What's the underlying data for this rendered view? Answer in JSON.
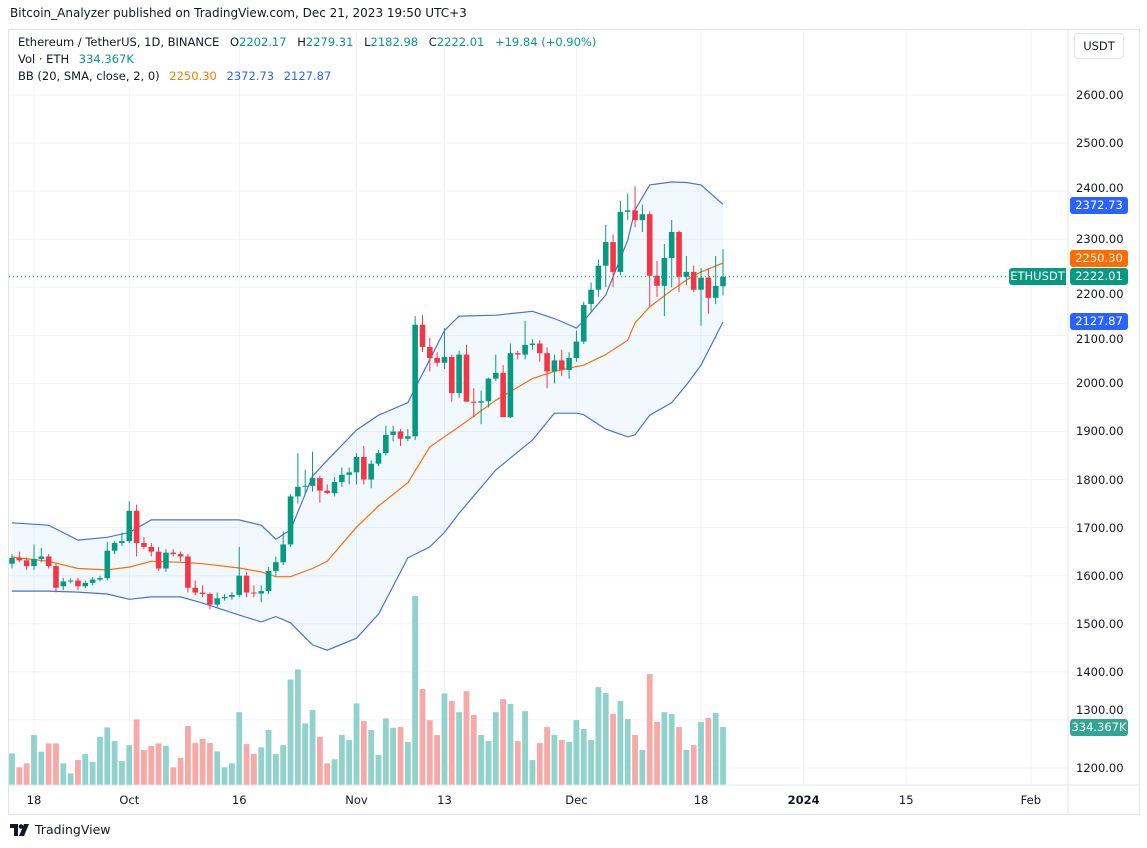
{
  "header": {
    "publisher_line": "Bitcoin_Analyzer published on TradingView.com, Dec 21, 2023 19:50 UTC+3"
  },
  "legend": {
    "symbol": "Ethereum / TetherUS, 1D, BINANCE",
    "open_label": "O",
    "open": "2202.17",
    "high_label": "H",
    "high": "2279.31",
    "low_label": "L",
    "low": "2182.98",
    "close_label": "C",
    "close": "2222.01",
    "change": "+19.84 (+0.90%)",
    "vol_label": "Vol · ETH",
    "vol_value": "334.367K",
    "bb_label": "BB (20, SMA, close, 2, 0)",
    "bb_basis": "2250.30",
    "bb_upper": "2372.73",
    "bb_lower": "2127.87"
  },
  "price_axis": {
    "currency_button": "USDT"
  },
  "tags": {
    "upper": "2372.73",
    "basis": "2250.30",
    "last": "2222.01",
    "lower": "2127.87",
    "symbol": "ETHUSDT",
    "volume": "334.367K"
  },
  "colors": {
    "up": "#089981",
    "down": "#f23645",
    "vol_up": "#92d2cc",
    "vol_down": "#f7a9a7",
    "bb_band": "#4a6fe0",
    "bb_basis": "#ff6d00",
    "bb_fill": "#2196f3",
    "tag_blue": "#2962ff",
    "tag_orange": "#ff6d00",
    "tag_green": "#089981",
    "tag_volume": "#33a594"
  },
  "footer": {
    "brand": "TradingView"
  },
  "chart_data": {
    "type": "candlestick",
    "interval": "1D",
    "grid": true,
    "y_ticks": [
      "2600.00",
      "2500.00",
      "2400.00",
      "2300.00",
      "2200.00",
      "2100.00",
      "2000.00",
      "1900.00",
      "1800.00",
      "1700.00",
      "1600.00",
      "1500.00",
      "1400.00",
      "1300.00",
      "1200.00"
    ],
    "ylim": [
      1150,
      2700
    ],
    "x_ticks": [
      {
        "label": "18",
        "date": "2023-09-18"
      },
      {
        "label": "Oct",
        "date": "2023-10-01"
      },
      {
        "label": "16",
        "date": "2023-10-16"
      },
      {
        "label": "Nov",
        "date": "2023-11-01"
      },
      {
        "label": "13",
        "date": "2023-11-13"
      },
      {
        "label": "Dec",
        "date": "2023-12-01"
      },
      {
        "label": "18",
        "date": "2023-12-18"
      },
      {
        "label": "2024",
        "date": "2024-01-01",
        "bold": true
      },
      {
        "label": "15",
        "date": "2024-01-15"
      },
      {
        "label": "Feb",
        "date": "2024-02-01"
      }
    ],
    "candle_fields": [
      "date",
      "open",
      "high",
      "low",
      "close",
      "volume_k"
    ],
    "candles": [
      [
        "2023-09-15",
        1625,
        1645,
        1615,
        1637,
        182
      ],
      [
        "2023-09-16",
        1637,
        1650,
        1628,
        1632,
        102
      ],
      [
        "2023-09-17",
        1632,
        1638,
        1612,
        1620,
        125
      ],
      [
        "2023-09-18",
        1620,
        1665,
        1612,
        1635,
        288
      ],
      [
        "2023-09-19",
        1635,
        1658,
        1628,
        1640,
        192
      ],
      [
        "2023-09-20",
        1640,
        1645,
        1615,
        1620,
        240
      ],
      [
        "2023-09-21",
        1620,
        1625,
        1565,
        1575,
        240
      ],
      [
        "2023-09-22",
        1578,
        1595,
        1570,
        1588,
        125
      ],
      [
        "2023-09-23",
        1588,
        1594,
        1584,
        1590,
        67
      ],
      [
        "2023-09-24",
        1590,
        1596,
        1570,
        1578,
        144
      ],
      [
        "2023-09-25",
        1578,
        1590,
        1574,
        1585,
        178
      ],
      [
        "2023-09-26",
        1585,
        1597,
        1580,
        1592,
        132
      ],
      [
        "2023-09-27",
        1592,
        1600,
        1588,
        1595,
        278
      ],
      [
        "2023-09-28",
        1595,
        1670,
        1590,
        1652,
        332
      ],
      [
        "2023-09-29",
        1652,
        1672,
        1645,
        1668,
        253
      ],
      [
        "2023-09-30",
        1668,
        1690,
        1662,
        1672,
        138
      ],
      [
        "2023-10-01",
        1672,
        1755,
        1668,
        1735,
        230
      ],
      [
        "2023-10-02",
        1735,
        1748,
        1640,
        1668,
        378
      ],
      [
        "2023-10-03",
        1668,
        1680,
        1655,
        1660,
        202
      ],
      [
        "2023-10-04",
        1660,
        1668,
        1640,
        1650,
        225
      ],
      [
        "2023-10-05",
        1650,
        1660,
        1610,
        1615,
        240
      ],
      [
        "2023-10-06",
        1615,
        1655,
        1608,
        1648,
        225
      ],
      [
        "2023-10-07",
        1648,
        1655,
        1640,
        1645,
        102
      ],
      [
        "2023-10-08",
        1645,
        1650,
        1630,
        1640,
        156
      ],
      [
        "2023-10-09",
        1640,
        1645,
        1565,
        1575,
        340
      ],
      [
        "2023-10-10",
        1575,
        1590,
        1560,
        1565,
        242
      ],
      [
        "2023-10-11",
        1565,
        1580,
        1555,
        1562,
        265
      ],
      [
        "2023-10-12",
        1562,
        1565,
        1530,
        1540,
        242
      ],
      [
        "2023-10-13",
        1540,
        1565,
        1535,
        1553,
        194
      ],
      [
        "2023-10-14",
        1553,
        1562,
        1548,
        1556,
        102
      ],
      [
        "2023-10-15",
        1556,
        1566,
        1550,
        1560,
        125
      ],
      [
        "2023-10-16",
        1560,
        1660,
        1555,
        1600,
        420
      ],
      [
        "2023-10-17",
        1600,
        1608,
        1555,
        1565,
        236
      ],
      [
        "2023-10-18",
        1565,
        1580,
        1555,
        1563,
        178
      ],
      [
        "2023-10-19",
        1563,
        1580,
        1545,
        1568,
        217
      ],
      [
        "2023-10-20",
        1568,
        1618,
        1562,
        1610,
        317
      ],
      [
        "2023-10-21",
        1610,
        1640,
        1600,
        1628,
        178
      ],
      [
        "2023-10-22",
        1628,
        1692,
        1622,
        1665,
        230
      ],
      [
        "2023-10-23",
        1665,
        1770,
        1660,
        1765,
        608
      ],
      [
        "2023-10-24",
        1765,
        1855,
        1750,
        1785,
        666
      ],
      [
        "2023-10-25",
        1785,
        1820,
        1770,
        1787,
        355
      ],
      [
        "2023-10-26",
        1787,
        1858,
        1775,
        1803,
        432
      ],
      [
        "2023-10-27",
        1803,
        1808,
        1752,
        1777,
        278
      ],
      [
        "2023-10-28",
        1777,
        1790,
        1770,
        1772,
        125
      ],
      [
        "2023-10-29",
        1772,
        1805,
        1765,
        1795,
        148
      ],
      [
        "2023-10-30",
        1795,
        1825,
        1785,
        1810,
        288
      ],
      [
        "2023-10-31",
        1810,
        1825,
        1790,
        1815,
        259
      ],
      [
        "2023-11-01",
        1815,
        1855,
        1790,
        1847,
        470
      ],
      [
        "2023-11-02",
        1847,
        1870,
        1790,
        1800,
        368
      ],
      [
        "2023-11-03",
        1800,
        1840,
        1782,
        1833,
        317
      ],
      [
        "2023-11-04",
        1833,
        1862,
        1828,
        1855,
        173
      ],
      [
        "2023-11-05",
        1855,
        1912,
        1850,
        1893,
        384
      ],
      [
        "2023-11-06",
        1893,
        1912,
        1880,
        1900,
        330
      ],
      [
        "2023-11-07",
        1900,
        1905,
        1870,
        1885,
        334
      ],
      [
        "2023-11-08",
        1885,
        1905,
        1880,
        1890,
        248
      ],
      [
        "2023-11-09",
        1890,
        2140,
        1882,
        2122,
        1089
      ],
      [
        "2023-11-10",
        2122,
        2142,
        2065,
        2076,
        553
      ],
      [
        "2023-11-11",
        2076,
        2095,
        2025,
        2053,
        374
      ],
      [
        "2023-11-12",
        2053,
        2065,
        2035,
        2043,
        288
      ],
      [
        "2023-11-13",
        2043,
        2115,
        2030,
        2055,
        528
      ],
      [
        "2023-11-14",
        2055,
        2060,
        1962,
        1980,
        484
      ],
      [
        "2023-11-15",
        1980,
        2068,
        1970,
        2060,
        420
      ],
      [
        "2023-11-16",
        2060,
        2080,
        1965,
        1962,
        541
      ],
      [
        "2023-11-17",
        1962,
        1990,
        1930,
        1960,
        403
      ],
      [
        "2023-11-18",
        1960,
        1985,
        1915,
        1963,
        288
      ],
      [
        "2023-11-19",
        1963,
        2012,
        1950,
        2010,
        253
      ],
      [
        "2023-11-20",
        2010,
        2060,
        2005,
        2022,
        420
      ],
      [
        "2023-11-21",
        2022,
        2038,
        1930,
        1930,
        495
      ],
      [
        "2023-11-22",
        1930,
        2083,
        1928,
        2063,
        467
      ],
      [
        "2023-11-23",
        2063,
        2068,
        2050,
        2060,
        253
      ],
      [
        "2023-11-24",
        2060,
        2130,
        2050,
        2080,
        426
      ],
      [
        "2023-11-25",
        2080,
        2092,
        2070,
        2083,
        144
      ],
      [
        "2023-11-26",
        2083,
        2090,
        2045,
        2063,
        242
      ],
      [
        "2023-11-27",
        2063,
        2075,
        1990,
        2025,
        334
      ],
      [
        "2023-11-28",
        2025,
        2060,
        2000,
        2048,
        288
      ],
      [
        "2023-11-29",
        2048,
        2070,
        2015,
        2028,
        259
      ],
      [
        "2023-11-30",
        2028,
        2065,
        2010,
        2053,
        248
      ],
      [
        "2023-12-01",
        2053,
        2110,
        2045,
        2087,
        374
      ],
      [
        "2023-12-02",
        2087,
        2170,
        2082,
        2163,
        323
      ],
      [
        "2023-12-03",
        2165,
        2210,
        2150,
        2195,
        259
      ],
      [
        "2023-12-04",
        2195,
        2258,
        2180,
        2245,
        564
      ],
      [
        "2023-12-05",
        2245,
        2330,
        2200,
        2294,
        530
      ],
      [
        "2023-12-06",
        2294,
        2310,
        2200,
        2232,
        409
      ],
      [
        "2023-12-07",
        2232,
        2380,
        2225,
        2357,
        484
      ],
      [
        "2023-12-08",
        2357,
        2395,
        2340,
        2360,
        380
      ],
      [
        "2023-12-09",
        2360,
        2410,
        2325,
        2340,
        288
      ],
      [
        "2023-12-10",
        2340,
        2372,
        2315,
        2352,
        202
      ],
      [
        "2023-12-11",
        2352,
        2358,
        2160,
        2224,
        639
      ],
      [
        "2023-12-12",
        2224,
        2255,
        2180,
        2203,
        363
      ],
      [
        "2023-12-13",
        2203,
        2290,
        2140,
        2261,
        420
      ],
      [
        "2023-12-14",
        2261,
        2340,
        2200,
        2315,
        409
      ],
      [
        "2023-12-15",
        2315,
        2318,
        2190,
        2222,
        334
      ],
      [
        "2023-12-16",
        2222,
        2265,
        2205,
        2232,
        202
      ],
      [
        "2023-12-17",
        2232,
        2245,
        2190,
        2195,
        230
      ],
      [
        "2023-12-18",
        2195,
        2240,
        2120,
        2220,
        363
      ],
      [
        "2023-12-19",
        2220,
        2240,
        2145,
        2178,
        386
      ],
      [
        "2023-12-20",
        2178,
        2265,
        2165,
        2203,
        415
      ],
      [
        "2023-12-21",
        2202.17,
        2279.31,
        2182.98,
        2222.01,
        334.367
      ]
    ],
    "bollinger_fields": [
      "date",
      "upper",
      "basis",
      "lower"
    ],
    "bollinger": [
      [
        "2023-09-15",
        1710,
        1639,
        1568
      ],
      [
        "2023-09-20",
        1705,
        1630,
        1568
      ],
      [
        "2023-09-24",
        1674,
        1615,
        1566
      ],
      [
        "2023-09-28",
        1680,
        1612,
        1562
      ],
      [
        "2023-10-01",
        1690,
        1618,
        1551
      ],
      [
        "2023-10-04",
        1716,
        1630,
        1556
      ],
      [
        "2023-10-08",
        1716,
        1628,
        1556
      ],
      [
        "2023-10-11",
        1716,
        1625,
        1543
      ],
      [
        "2023-10-16",
        1716,
        1616,
        1518
      ],
      [
        "2023-10-19",
        1705,
        1608,
        1504
      ],
      [
        "2023-10-21",
        1676,
        1598,
        1515
      ],
      [
        "2023-10-23",
        1695,
        1598,
        1502
      ],
      [
        "2023-10-26",
        1807,
        1615,
        1456
      ],
      [
        "2023-10-28",
        1840,
        1630,
        1445
      ],
      [
        "2023-11-01",
        1903,
        1701,
        1470
      ],
      [
        "2023-11-04",
        1934,
        1745,
        1520
      ],
      [
        "2023-11-08",
        1960,
        1793,
        1637
      ],
      [
        "2023-11-11",
        2050,
        1868,
        1660
      ],
      [
        "2023-11-13",
        2110,
        1889,
        1690
      ],
      [
        "2023-11-15",
        2140,
        1910,
        1730
      ],
      [
        "2023-11-20",
        2142,
        1965,
        1820
      ],
      [
        "2023-11-25",
        2150,
        2010,
        1882
      ],
      [
        "2023-11-28",
        2135,
        2025,
        1938
      ],
      [
        "2023-12-01",
        2115,
        2035,
        1938
      ],
      [
        "2023-12-02",
        2130,
        2038,
        1935
      ],
      [
        "2023-12-05",
        2184,
        2060,
        1905
      ],
      [
        "2023-12-08",
        2298,
        2090,
        1889
      ],
      [
        "2023-12-09",
        2361,
        2126,
        1893
      ],
      [
        "2023-12-11",
        2413,
        2159,
        1934
      ],
      [
        "2023-12-14",
        2419,
        2194,
        1960
      ],
      [
        "2023-12-16",
        2418,
        2215,
        1997
      ],
      [
        "2023-12-18",
        2413,
        2232,
        2038
      ],
      [
        "2023-12-21",
        2372.73,
        2250.3,
        2127.87
      ]
    ],
    "last_price": 2222.01,
    "last_volume_k": 334.367
  }
}
